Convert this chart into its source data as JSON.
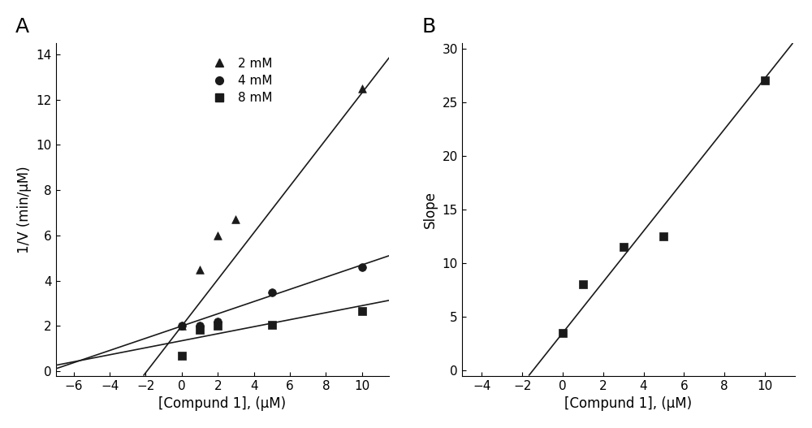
{
  "panel_A": {
    "label": "A",
    "series": [
      {
        "name": "2 mM",
        "marker": "^",
        "x_data": [
          0,
          1,
          2,
          3,
          10
        ],
        "y_data": [
          2.0,
          4.5,
          6.0,
          6.7,
          12.5
        ],
        "line_slope": 1.03,
        "line_intercept": 2.0
      },
      {
        "name": "4 mM",
        "marker": "o",
        "x_data": [
          0,
          1,
          2,
          5,
          10
        ],
        "y_data": [
          2.0,
          2.0,
          2.2,
          3.5,
          4.6
        ],
        "line_slope": 0.27,
        "line_intercept": 2.0
      },
      {
        "name": "8 mM",
        "marker": "s",
        "x_data": [
          0,
          1,
          2,
          5,
          10
        ],
        "y_data": [
          0.7,
          1.85,
          2.0,
          2.05,
          2.65
        ],
        "line_slope": 0.155,
        "line_intercept": 1.35
      }
    ],
    "xlabel": "[Compund 1], (μM)",
    "ylabel": "1/V (min/μM)",
    "xlim": [
      -7,
      11.5
    ],
    "ylim": [
      -0.2,
      14.5
    ],
    "xticks": [
      -6,
      -4,
      -2,
      0,
      2,
      4,
      6,
      8,
      10
    ],
    "yticks": [
      0,
      2,
      4,
      6,
      8,
      10,
      12,
      14
    ]
  },
  "panel_B": {
    "label": "B",
    "x_data": [
      0,
      1,
      3,
      5,
      10
    ],
    "y_data": [
      3.5,
      8.0,
      11.5,
      12.5,
      27.0
    ],
    "line_slope": 2.37,
    "line_intercept": 3.5,
    "xlabel": "[Compund 1], (μM)",
    "ylabel": "Slope",
    "xlim": [
      -5,
      11.5
    ],
    "ylim": [
      -0.5,
      30.5
    ],
    "xticks": [
      -4,
      -2,
      0,
      2,
      4,
      6,
      8,
      10
    ],
    "yticks": [
      0,
      5,
      10,
      15,
      20,
      25,
      30
    ]
  },
  "line_color": "#1a1a1a",
  "marker_color": "#1a1a1a",
  "marker_size": 7,
  "line_width": 1.2,
  "font_size": 11,
  "label_font_size": 12
}
